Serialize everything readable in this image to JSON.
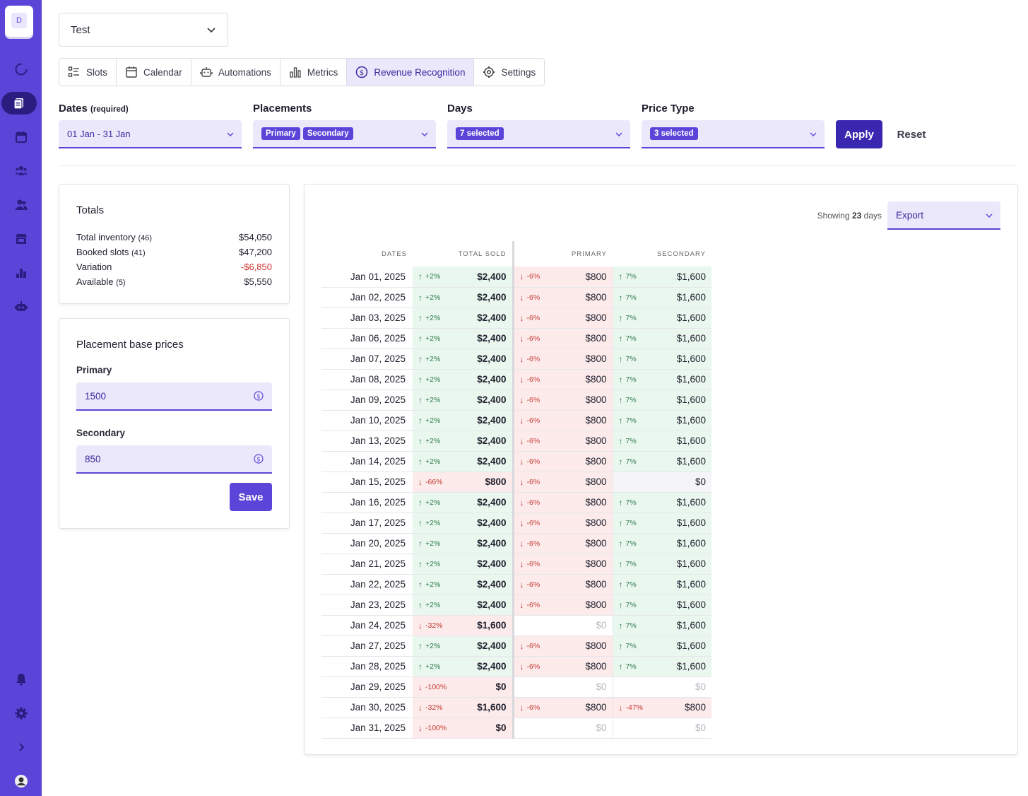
{
  "sidebar": {
    "logo_letter": "D",
    "items": [
      {
        "icon": "spinner-circle-icon"
      },
      {
        "icon": "pages-icon",
        "active": true
      },
      {
        "icon": "calendar-icon"
      },
      {
        "icon": "people-group-icon"
      },
      {
        "icon": "contacts-icon"
      },
      {
        "icon": "store-icon"
      },
      {
        "icon": "bar-chart-icon"
      },
      {
        "icon": "robot-icon"
      }
    ],
    "bottom": [
      {
        "icon": "bell-icon"
      },
      {
        "icon": "gear-icon"
      },
      {
        "icon": "chevron-right-icon"
      },
      {
        "icon": "user-avatar-icon"
      }
    ]
  },
  "project": {
    "value": "Test"
  },
  "tabs": [
    {
      "label": "Slots",
      "icon": "list-check-icon"
    },
    {
      "label": "Calendar",
      "icon": "calendar-icon"
    },
    {
      "label": "Automations",
      "icon": "robot-icon"
    },
    {
      "label": "Metrics",
      "icon": "bar-chart-icon"
    },
    {
      "label": "Revenue Recognition",
      "icon": "dollar-circle-icon",
      "active": true
    },
    {
      "label": "Settings",
      "icon": "gear-icon"
    }
  ],
  "filters": {
    "dates": {
      "label": "Dates",
      "required": "(required)",
      "value": "01 Jan - 31 Jan"
    },
    "placements": {
      "label": "Placements",
      "chips": [
        "Primary",
        "Secondary"
      ]
    },
    "days": {
      "label": "Days",
      "chip": "7 selected"
    },
    "price_type": {
      "label": "Price Type",
      "chip": "3 selected"
    },
    "apply_label": "Apply",
    "reset_label": "Reset"
  },
  "totals": {
    "title": "Totals",
    "rows": [
      {
        "label": "Total inventory",
        "count": "(46)",
        "value": "$54,050",
        "negative": false
      },
      {
        "label": "Booked slots",
        "count": "(41)",
        "value": "$47,200",
        "negative": false
      },
      {
        "label": "Variation",
        "count": "",
        "value": "-$6,850",
        "negative": true
      },
      {
        "label": "Available",
        "count": "(5)",
        "value": "$5,550",
        "negative": false
      }
    ]
  },
  "base_prices": {
    "title": "Placement base prices",
    "primary_label": "Primary",
    "primary_value": "1500",
    "secondary_label": "Secondary",
    "secondary_value": "850",
    "save_label": "Save"
  },
  "table": {
    "showing_prefix": "Showing",
    "showing_count": "23",
    "showing_suffix": "days",
    "export_label": "Export",
    "headers": [
      "DATES",
      "TOTAL SOLD",
      "PRIMARY",
      "SECONDARY"
    ],
    "rows": [
      {
        "date": "Jan 01, 2025",
        "total": [
          "+2%",
          "$2,400",
          "up"
        ],
        "primary": [
          "-6%",
          "$800",
          "down"
        ],
        "secondary": [
          "7%",
          "$1,600",
          "up"
        ]
      },
      {
        "date": "Jan 02, 2025",
        "total": [
          "+2%",
          "$2,400",
          "up"
        ],
        "primary": [
          "-6%",
          "$800",
          "down"
        ],
        "secondary": [
          "7%",
          "$1,600",
          "up"
        ]
      },
      {
        "date": "Jan 03, 2025",
        "total": [
          "+2%",
          "$2,400",
          "up"
        ],
        "primary": [
          "-6%",
          "$800",
          "down"
        ],
        "secondary": [
          "7%",
          "$1,600",
          "up"
        ]
      },
      {
        "date": "Jan 06, 2025",
        "total": [
          "+2%",
          "$2,400",
          "up"
        ],
        "primary": [
          "-6%",
          "$800",
          "down"
        ],
        "secondary": [
          "7%",
          "$1,600",
          "up"
        ]
      },
      {
        "date": "Jan 07, 2025",
        "total": [
          "+2%",
          "$2,400",
          "up"
        ],
        "primary": [
          "-6%",
          "$800",
          "down"
        ],
        "secondary": [
          "7%",
          "$1,600",
          "up"
        ]
      },
      {
        "date": "Jan 08, 2025",
        "total": [
          "+2%",
          "$2,400",
          "up"
        ],
        "primary": [
          "-6%",
          "$800",
          "down"
        ],
        "secondary": [
          "7%",
          "$1,600",
          "up"
        ]
      },
      {
        "date": "Jan 09, 2025",
        "total": [
          "+2%",
          "$2,400",
          "up"
        ],
        "primary": [
          "-6%",
          "$800",
          "down"
        ],
        "secondary": [
          "7%",
          "$1,600",
          "up"
        ]
      },
      {
        "date": "Jan 10, 2025",
        "total": [
          "+2%",
          "$2,400",
          "up"
        ],
        "primary": [
          "-6%",
          "$800",
          "down"
        ],
        "secondary": [
          "7%",
          "$1,600",
          "up"
        ]
      },
      {
        "date": "Jan 13, 2025",
        "total": [
          "+2%",
          "$2,400",
          "up"
        ],
        "primary": [
          "-6%",
          "$800",
          "down"
        ],
        "secondary": [
          "7%",
          "$1,600",
          "up"
        ]
      },
      {
        "date": "Jan 14, 2025",
        "total": [
          "+2%",
          "$2,400",
          "up"
        ],
        "primary": [
          "-6%",
          "$800",
          "down"
        ],
        "secondary": [
          "7%",
          "$1,600",
          "up"
        ]
      },
      {
        "date": "Jan 15, 2025",
        "total": [
          "-66%",
          "$800",
          "down"
        ],
        "primary": [
          "-6%",
          "$800",
          "down"
        ],
        "secondary": [
          "",
          "$0",
          "neutral"
        ]
      },
      {
        "date": "Jan 16, 2025",
        "total": [
          "+2%",
          "$2,400",
          "up"
        ],
        "primary": [
          "-6%",
          "$800",
          "down"
        ],
        "secondary": [
          "7%",
          "$1,600",
          "up"
        ]
      },
      {
        "date": "Jan 17, 2025",
        "total": [
          "+2%",
          "$2,400",
          "up"
        ],
        "primary": [
          "-6%",
          "$800",
          "down"
        ],
        "secondary": [
          "7%",
          "$1,600",
          "up"
        ]
      },
      {
        "date": "Jan 20, 2025",
        "total": [
          "+2%",
          "$2,400",
          "up"
        ],
        "primary": [
          "-6%",
          "$800",
          "down"
        ],
        "secondary": [
          "7%",
          "$1,600",
          "up"
        ]
      },
      {
        "date": "Jan 21, 2025",
        "total": [
          "+2%",
          "$2,400",
          "up"
        ],
        "primary": [
          "-6%",
          "$800",
          "down"
        ],
        "secondary": [
          "7%",
          "$1,600",
          "up"
        ]
      },
      {
        "date": "Jan 22, 2025",
        "total": [
          "+2%",
          "$2,400",
          "up"
        ],
        "primary": [
          "-6%",
          "$800",
          "down"
        ],
        "secondary": [
          "7%",
          "$1,600",
          "up"
        ]
      },
      {
        "date": "Jan 23, 2025",
        "total": [
          "+2%",
          "$2,400",
          "up"
        ],
        "primary": [
          "-6%",
          "$800",
          "down"
        ],
        "secondary": [
          "7%",
          "$1,600",
          "up"
        ]
      },
      {
        "date": "Jan 24, 2025",
        "total": [
          "-32%",
          "$1,600",
          "down"
        ],
        "primary": [
          "",
          "$0",
          "empty"
        ],
        "secondary": [
          "7%",
          "$1,600",
          "up"
        ]
      },
      {
        "date": "Jan 27, 2025",
        "total": [
          "+2%",
          "$2,400",
          "up"
        ],
        "primary": [
          "-6%",
          "$800",
          "down"
        ],
        "secondary": [
          "7%",
          "$1,600",
          "up"
        ]
      },
      {
        "date": "Jan 28, 2025",
        "total": [
          "+2%",
          "$2,400",
          "up"
        ],
        "primary": [
          "-6%",
          "$800",
          "down"
        ],
        "secondary": [
          "7%",
          "$1,600",
          "up"
        ]
      },
      {
        "date": "Jan 29, 2025",
        "total": [
          "-100%",
          "$0",
          "down"
        ],
        "primary": [
          "",
          "$0",
          "empty"
        ],
        "secondary": [
          "",
          "$0",
          "empty"
        ]
      },
      {
        "date": "Jan 30, 2025",
        "total": [
          "-32%",
          "$1,600",
          "down"
        ],
        "primary": [
          "-6%",
          "$800",
          "down"
        ],
        "secondary": [
          "-47%",
          "$800",
          "down"
        ]
      },
      {
        "date": "Jan 31, 2025",
        "total": [
          "-100%",
          "$0",
          "down"
        ],
        "primary": [
          "",
          "$0",
          "empty"
        ],
        "secondary": [
          "",
          "$0",
          "empty"
        ]
      }
    ]
  },
  "colors": {
    "accent": "#5b45d9",
    "sidebar": "#5b45d9",
    "up": "#2d7a4a",
    "down": "#c33a35"
  }
}
